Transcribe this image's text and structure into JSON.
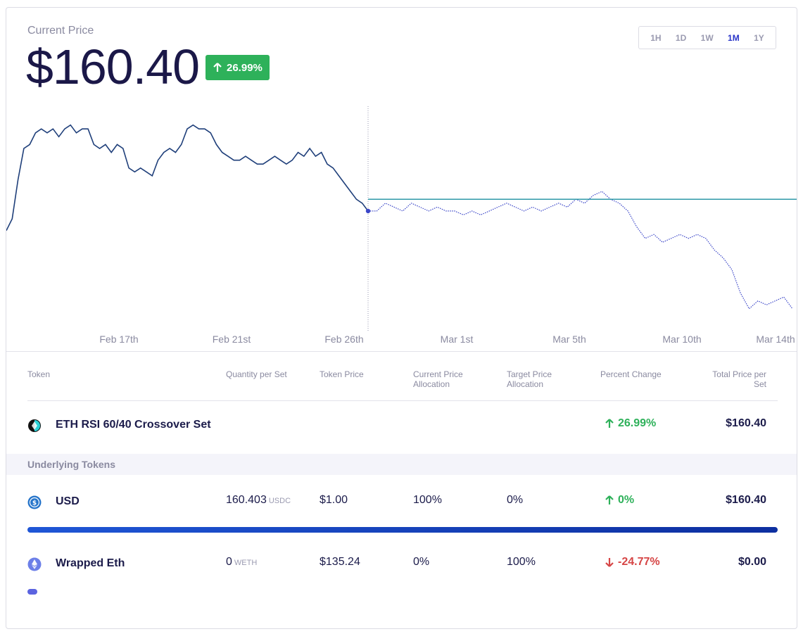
{
  "header": {
    "current_price_label": "Current Price",
    "price": "$160.40",
    "change": "26.99%",
    "change_color": "#2eb15a"
  },
  "timeframes": {
    "items": [
      "1H",
      "1D",
      "1W",
      "1M",
      "1Y"
    ],
    "active": "1M"
  },
  "chart_data": {
    "type": "line",
    "x_tick_labels": [
      "Feb 17th",
      "Feb 21st",
      "Feb 26th",
      "Mar 1st",
      "Mar 5th",
      "Mar 10th",
      "Mar 14th"
    ],
    "series": [
      {
        "style": "solid",
        "color": "#1f3f7a",
        "values": [
          126,
          129,
          139,
          147,
          148,
          151,
          152,
          151,
          152,
          150,
          152,
          153,
          151,
          152,
          152,
          148,
          147,
          148,
          146,
          148,
          147,
          142,
          141,
          142,
          141,
          140,
          144,
          146,
          147,
          146,
          148,
          152,
          153,
          152,
          152,
          151,
          148,
          146,
          145,
          144,
          144,
          145,
          144,
          143,
          143,
          144,
          145,
          144,
          143,
          144,
          146,
          145,
          147,
          145,
          146,
          143,
          142,
          140,
          138,
          136,
          134,
          133,
          131
        ]
      },
      {
        "style": "dotted",
        "color": "#3b46c8",
        "values": [
          131,
          131,
          133,
          132,
          131,
          133,
          132,
          131,
          132,
          131,
          131,
          130,
          131,
          130,
          131,
          132,
          133,
          132,
          131,
          132,
          131,
          132,
          133,
          132,
          134,
          133,
          135,
          136,
          134,
          133,
          131,
          127,
          124,
          125,
          123,
          124,
          125,
          124,
          125,
          124,
          121,
          119,
          116,
          110,
          106,
          108,
          107,
          108,
          109,
          106
        ]
      }
    ],
    "reference_line": {
      "color": "#1a8fa0"
    },
    "grid": false,
    "legend": "none"
  },
  "table": {
    "headers": {
      "token": "Token",
      "quantity": "Quantity per Set",
      "token_price": "Token Price",
      "current_alloc": "Current Price Allocation",
      "target_alloc": "Target Price Allocation",
      "percent_change": "Percent Change",
      "total_price": "Total Price per Set"
    },
    "set_row": {
      "name": "ETH RSI 60/40 Crossover Set",
      "percent_change": "26.99%",
      "total": "$160.40",
      "icon": "eth-rsi-set-icon"
    },
    "underlying_label": "Underlying Tokens",
    "tokens": [
      {
        "name": "USD",
        "quantity": "160.403",
        "unit": "USDC",
        "price": "$1.00",
        "current_alloc": "100%",
        "target_alloc": "0%",
        "percent_change": "0%",
        "direction": "up",
        "total": "$160.40",
        "icon": "usdc-icon",
        "allocation_fraction": 1.0
      },
      {
        "name": "Wrapped Eth",
        "quantity": "0",
        "unit": "WETH",
        "price": "$135.24",
        "current_alloc": "0%",
        "target_alloc": "100%",
        "percent_change": "-24.77%",
        "direction": "down",
        "total": "$0.00",
        "icon": "weth-icon",
        "allocation_fraction": 0.0
      }
    ]
  }
}
